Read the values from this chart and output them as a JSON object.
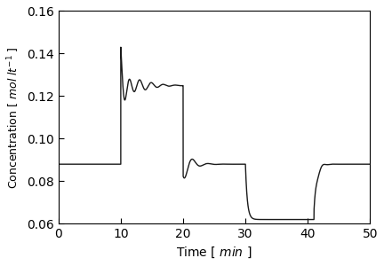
{
  "xlabel": "Time [ $min$ ]",
  "ylabel": "Concentration [ $mol$ $lt^{-1}$ ]",
  "xlim": [
    0,
    50
  ],
  "ylim": [
    0.06,
    0.16
  ],
  "yticks": [
    0.06,
    0.08,
    0.1,
    0.12,
    0.14,
    0.16
  ],
  "xticks": [
    0,
    10,
    20,
    30,
    40,
    50
  ],
  "line_color": "#1a1a1a",
  "line_width": 1.0,
  "background_color": "#ffffff",
  "baseline": 0.088,
  "low_level": 0.062
}
